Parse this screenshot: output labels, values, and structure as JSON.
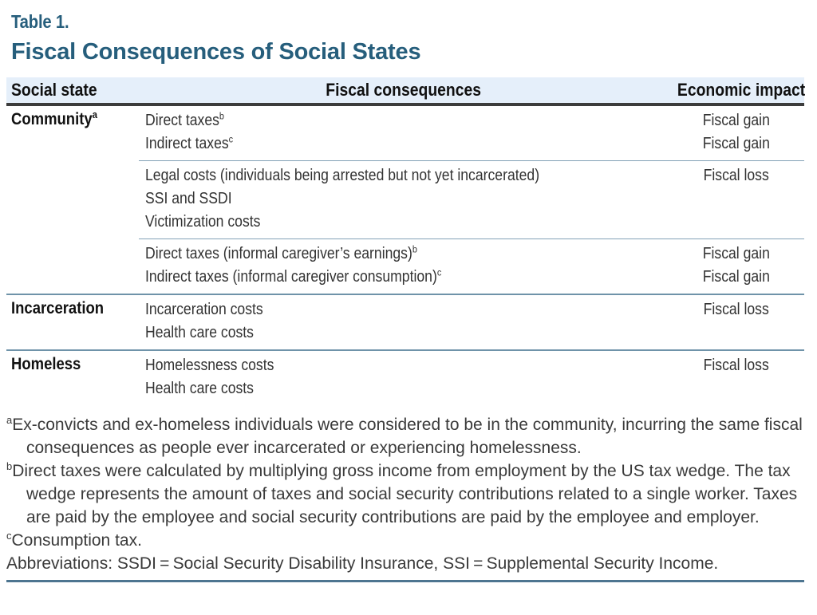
{
  "table": {
    "label": "Table 1.",
    "title": "Fiscal Consequences of Social States",
    "headers": {
      "state": "Social state",
      "consequences": "Fiscal consequences",
      "impact": "Economic impact"
    },
    "groups": [
      {
        "state": "Community",
        "state_sup": "a",
        "subrows": [
          [
            {
              "text": "Direct taxes",
              "sup": "b",
              "impact": "Fiscal gain"
            },
            {
              "text": "Indirect taxes",
              "sup": "c",
              "impact": "Fiscal gain"
            }
          ],
          [
            {
              "text": "Legal costs (individuals being arrested but not yet incarcerated)",
              "sup": "",
              "impact": "Fiscal loss"
            },
            {
              "text": "SSI and SSDI",
              "sup": "",
              "impact": ""
            },
            {
              "text": "Victimization costs",
              "sup": "",
              "impact": ""
            }
          ],
          [
            {
              "text": "Direct taxes (informal caregiver’s earnings)",
              "sup": "b",
              "impact": "Fiscal gain"
            },
            {
              "text": "Indirect taxes (informal caregiver consumption)",
              "sup": "c",
              "impact": "Fiscal gain"
            }
          ]
        ]
      },
      {
        "state": "Incarceration",
        "state_sup": "",
        "subrows": [
          [
            {
              "text": "Incarceration costs",
              "sup": "",
              "impact": "Fiscal loss"
            },
            {
              "text": "Health care costs",
              "sup": "",
              "impact": ""
            }
          ]
        ]
      },
      {
        "state": "Homeless",
        "state_sup": "",
        "subrows": [
          [
            {
              "text": "Homelessness costs",
              "sup": "",
              "impact": "Fiscal loss"
            },
            {
              "text": "Health care costs",
              "sup": "",
              "impact": ""
            }
          ]
        ]
      }
    ]
  },
  "footnotes": [
    {
      "marker": "a",
      "text": "Ex-convicts and ex-homeless individuals were considered to be in the community, incurring the same fiscal consequences as people ever incarcerated or experiencing homelessness."
    },
    {
      "marker": "b",
      "text": "Direct taxes were calculated by multiplying gross income from employment by the US tax wedge. The tax wedge represents the amount of taxes and social security contributions related to a single worker. Taxes are paid by the employee and social security contributions are paid by the employee and employer."
    },
    {
      "marker": "c",
      "text": "Consumption tax."
    },
    {
      "marker": "",
      "text": "Abbreviations: SSDI = Social Security Disability Insurance, SSI = Supplemental Security Income."
    }
  ],
  "colors": {
    "accent_teal": "#265e7c",
    "header_band_bg": "#e5effa",
    "header_rule": "#3c3c3c",
    "row_divider": "#82a1b6",
    "group_divider": "#6f93a9",
    "bottom_rule": "#4d7590",
    "body_text": "#333333"
  }
}
